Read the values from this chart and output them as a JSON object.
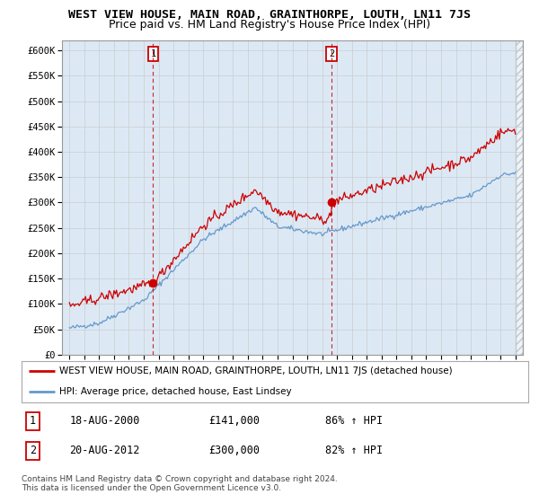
{
  "title": "WEST VIEW HOUSE, MAIN ROAD, GRAINTHORPE, LOUTH, LN11 7JS",
  "subtitle": "Price paid vs. HM Land Registry's House Price Index (HPI)",
  "ylabel_ticks": [
    "£0",
    "£50K",
    "£100K",
    "£150K",
    "£200K",
    "£250K",
    "£300K",
    "£350K",
    "£400K",
    "£450K",
    "£500K",
    "£550K",
    "£600K"
  ],
  "ytick_values": [
    0,
    50000,
    100000,
    150000,
    200000,
    250000,
    300000,
    350000,
    400000,
    450000,
    500000,
    550000,
    600000
  ],
  "ylim": [
    0,
    620000
  ],
  "xlim_start": 1994.5,
  "xlim_end": 2025.5,
  "background_color": "#ffffff",
  "grid_color": "#cccccc",
  "plot_bg_color": "#dce9f5",
  "red_color": "#cc0000",
  "blue_color": "#6699cc",
  "marker1_x": 2000.625,
  "marker1_y": 141000,
  "marker2_x": 2012.625,
  "marker2_y": 300000,
  "vline1_x": 2000.625,
  "vline2_x": 2012.625,
  "legend_line1": "WEST VIEW HOUSE, MAIN ROAD, GRAINTHORPE, LOUTH, LN11 7JS (detached house)",
  "legend_line2": "HPI: Average price, detached house, East Lindsey",
  "table_rows": [
    {
      "num": "1",
      "date": "18-AUG-2000",
      "price": "£141,000",
      "hpi": "86% ↑ HPI"
    },
    {
      "num": "2",
      "date": "20-AUG-2012",
      "price": "£300,000",
      "hpi": "82% ↑ HPI"
    }
  ],
  "footer": "Contains HM Land Registry data © Crown copyright and database right 2024.\nThis data is licensed under the Open Government Licence v3.0.",
  "title_fontsize": 9.5,
  "subtitle_fontsize": 9,
  "tick_fontsize": 7.5,
  "hatch_start": 2025.0
}
